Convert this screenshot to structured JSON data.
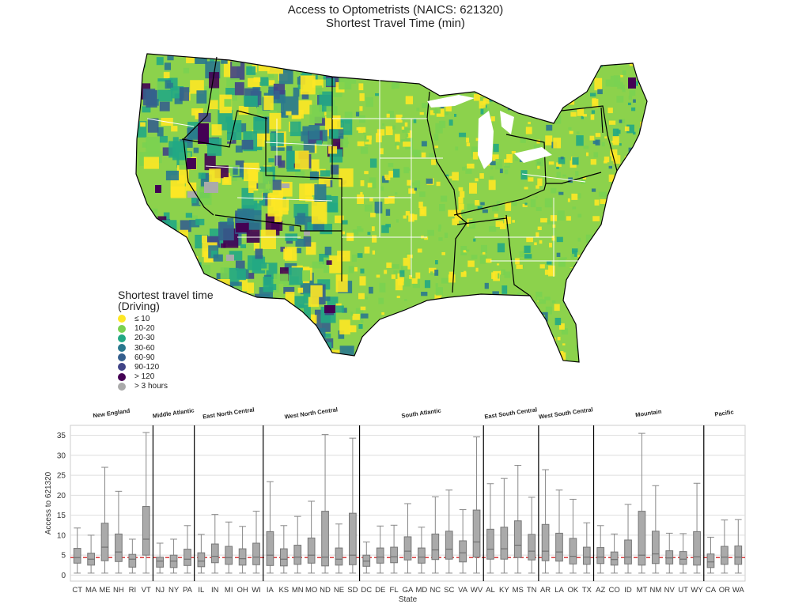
{
  "figure": {
    "title_line1": "Access to Optometrists (NAICS: 621320)",
    "title_line2": "Shortest Travel Time (min)"
  },
  "legend": {
    "title_line1": "Shortest travel time",
    "title_line2": "(Driving)",
    "items": [
      {
        "label": "≤ 10",
        "color": "#fde725"
      },
      {
        "label": "10-20",
        "color": "#7ad151"
      },
      {
        "label": "20-30",
        "color": "#22a884"
      },
      {
        "label": "30-60",
        "color": "#2a788e"
      },
      {
        "label": "60-90",
        "color": "#355f8d"
      },
      {
        "label": "90-120",
        "color": "#414487"
      },
      {
        "label": "> 120",
        "color": "#440154"
      },
      {
        "label": "> 3 hours",
        "color": "#aaaaaa"
      }
    ]
  },
  "chart_data": [
    {
      "type": "map",
      "description_note": "choropleth of shortest travel time by tract across the contiguous US, with census division boundaries",
      "color_scale": [
        "≤ 10",
        "10-20",
        "20-30",
        "30-60",
        "60-90",
        "90-120",
        "> 120",
        "> 3 hours"
      ]
    },
    {
      "type": "box",
      "xlabel": "State",
      "ylabel": "Access to 621320",
      "ylim": [
        -1.5,
        37.5
      ],
      "yticks": [
        0,
        5,
        10,
        15,
        20,
        25,
        30,
        35
      ],
      "grid": true,
      "reference_line": {
        "value": 4.4,
        "color": "#d62728",
        "style": "dashed"
      },
      "box_color": "#aaaaaa",
      "groups": [
        {
          "name": "New England",
          "states": [
            {
              "state": "CT",
              "min": 0.5,
              "q1": 3.0,
              "median": 4.4,
              "q3": 6.7,
              "max": 11.8
            },
            {
              "state": "MA",
              "min": 0.5,
              "q1": 2.5,
              "median": 4.0,
              "q3": 5.5,
              "max": 10.0
            },
            {
              "state": "ME",
              "min": 0.5,
              "q1": 3.6,
              "median": 7.0,
              "q3": 13.0,
              "max": 27.0
            },
            {
              "state": "NH",
              "min": 0.5,
              "q1": 3.4,
              "median": 5.8,
              "q3": 10.3,
              "max": 21.0
            },
            {
              "state": "RI",
              "min": 0.5,
              "q1": 2.0,
              "median": 4.0,
              "q3": 5.2,
              "max": 9.0
            },
            {
              "state": "VT",
              "min": 0.5,
              "q1": 5.0,
              "median": 9.0,
              "q3": 17.2,
              "max": 35.7
            }
          ]
        },
        {
          "name": "Middle Atlantic",
          "states": [
            {
              "state": "NJ",
              "min": 0.5,
              "q1": 2.0,
              "median": 3.5,
              "q3": 4.5,
              "max": 8.0
            },
            {
              "state": "NY",
              "min": 0.5,
              "q1": 1.9,
              "median": 3.5,
              "q3": 5.0,
              "max": 9.0
            },
            {
              "state": "PA",
              "min": 0.5,
              "q1": 2.4,
              "median": 4.0,
              "q3": 6.5,
              "max": 12.4
            }
          ]
        },
        {
          "name": "East North Central",
          "states": [
            {
              "state": "IL",
              "min": 0.5,
              "q1": 2.1,
              "median": 3.5,
              "q3": 5.6,
              "max": 10.2
            },
            {
              "state": "IN",
              "min": 0.5,
              "q1": 3.1,
              "median": 4.7,
              "q3": 7.8,
              "max": 15.2
            },
            {
              "state": "MI",
              "min": 0.5,
              "q1": 2.7,
              "median": 4.4,
              "q3": 7.2,
              "max": 13.3
            },
            {
              "state": "OH",
              "min": 0.5,
              "q1": 2.5,
              "median": 4.1,
              "q3": 6.6,
              "max": 12.2
            },
            {
              "state": "WI",
              "min": 0.5,
              "q1": 2.6,
              "median": 4.5,
              "q3": 8.0,
              "max": 16.0
            }
          ]
        },
        {
          "name": "West North Central",
          "states": [
            {
              "state": "IA",
              "min": 0.5,
              "q1": 2.4,
              "median": 5.0,
              "q3": 10.9,
              "max": 23.4
            },
            {
              "state": "KS",
              "min": 0.5,
              "q1": 2.3,
              "median": 4.0,
              "q3": 6.6,
              "max": 12.4
            },
            {
              "state": "MN",
              "min": 0.5,
              "q1": 2.7,
              "median": 4.5,
              "q3": 7.5,
              "max": 14.7
            },
            {
              "state": "MO",
              "min": 0.5,
              "q1": 3.0,
              "median": 5.0,
              "q3": 9.3,
              "max": 18.5
            },
            {
              "state": "ND",
              "min": 0.5,
              "q1": 2.3,
              "median": 4.5,
              "q3": 16.0,
              "max": 35.2
            },
            {
              "state": "NE",
              "min": 0.5,
              "q1": 2.5,
              "median": 4.0,
              "q3": 6.8,
              "max": 12.8
            },
            {
              "state": "SD",
              "min": 0.5,
              "q1": 2.6,
              "median": 5.0,
              "q3": 15.5,
              "max": 34.3
            }
          ]
        },
        {
          "name": "South Atlantic",
          "states": [
            {
              "state": "DC",
              "min": 0.5,
              "q1": 2.2,
              "median": 3.5,
              "q3": 5.0,
              "max": 8.3
            },
            {
              "state": "DE",
              "min": 0.5,
              "q1": 3.0,
              "median": 4.5,
              "q3": 6.8,
              "max": 12.3
            },
            {
              "state": "FL",
              "min": 0.5,
              "q1": 3.1,
              "median": 4.6,
              "q3": 7.0,
              "max": 12.5
            },
            {
              "state": "GA",
              "min": 0.5,
              "q1": 3.8,
              "median": 6.0,
              "q3": 9.6,
              "max": 17.9
            },
            {
              "state": "MD",
              "min": 0.5,
              "q1": 3.0,
              "median": 4.5,
              "q3": 6.8,
              "max": 12.0
            },
            {
              "state": "NC",
              "min": 0.5,
              "q1": 3.9,
              "median": 6.3,
              "q3": 10.3,
              "max": 19.6
            },
            {
              "state": "SC",
              "min": 0.5,
              "q1": 4.0,
              "median": 6.5,
              "q3": 11.0,
              "max": 21.3
            },
            {
              "state": "VA",
              "min": 0.5,
              "q1": 3.3,
              "median": 5.6,
              "q3": 8.6,
              "max": 16.4
            },
            {
              "state": "WV",
              "min": 0.5,
              "q1": 4.5,
              "median": 8.3,
              "q3": 16.3,
              "max": 34.6
            }
          ]
        },
        {
          "name": "East South Central",
          "states": [
            {
              "state": "AL",
              "min": 0.5,
              "q1": 4.0,
              "median": 6.5,
              "q3": 11.5,
              "max": 22.9
            },
            {
              "state": "KY",
              "min": 0.5,
              "q1": 4.0,
              "median": 6.6,
              "q3": 12.0,
              "max": 24.2
            },
            {
              "state": "MS",
              "min": 0.5,
              "q1": 4.4,
              "median": 7.5,
              "q3": 13.6,
              "max": 27.5
            },
            {
              "state": "TN",
              "min": 0.5,
              "q1": 3.8,
              "median": 6.0,
              "q3": 10.2,
              "max": 19.5
            }
          ]
        },
        {
          "name": "West South Central",
          "states": [
            {
              "state": "AR",
              "min": 0.5,
              "q1": 3.6,
              "median": 6.0,
              "q3": 12.7,
              "max": 26.4
            },
            {
              "state": "LA",
              "min": 0.5,
              "q1": 3.5,
              "median": 5.8,
              "q3": 10.5,
              "max": 21.3
            },
            {
              "state": "OK",
              "min": 0.5,
              "q1": 2.8,
              "median": 4.7,
              "q3": 9.2,
              "max": 19.0
            },
            {
              "state": "TX",
              "min": 0.5,
              "q1": 2.7,
              "median": 4.5,
              "q3": 7.0,
              "max": 13.1
            }
          ]
        },
        {
          "name": "Mountain",
          "states": [
            {
              "state": "AZ",
              "min": 0.5,
              "q1": 2.9,
              "median": 4.5,
              "q3": 6.9,
              "max": 12.4
            },
            {
              "state": "CO",
              "min": 0.5,
              "q1": 2.5,
              "median": 3.9,
              "q3": 5.8,
              "max": 10.3
            },
            {
              "state": "ID",
              "min": 0.5,
              "q1": 2.8,
              "median": 4.5,
              "q3": 8.8,
              "max": 17.7
            },
            {
              "state": "MT",
              "min": 0.5,
              "q1": 2.5,
              "median": 5.0,
              "q3": 16.0,
              "max": 35.5
            },
            {
              "state": "NM",
              "min": 0.5,
              "q1": 2.9,
              "median": 5.3,
              "q3": 11.0,
              "max": 22.4
            },
            {
              "state": "NV",
              "min": 0.5,
              "q1": 2.8,
              "median": 4.3,
              "q3": 6.1,
              "max": 10.5
            },
            {
              "state": "UT",
              "min": 0.5,
              "q1": 2.7,
              "median": 4.0,
              "q3": 5.9,
              "max": 10.4
            },
            {
              "state": "WY",
              "min": 0.5,
              "q1": 2.5,
              "median": 4.6,
              "q3": 10.9,
              "max": 23.0
            }
          ]
        },
        {
          "name": "Pacific",
          "states": [
            {
              "state": "CA",
              "min": 0.5,
              "q1": 1.9,
              "median": 3.3,
              "q3": 5.3,
              "max": 9.5
            },
            {
              "state": "OR",
              "min": 0.5,
              "q1": 2.7,
              "median": 4.5,
              "q3": 7.2,
              "max": 13.8
            },
            {
              "state": "WA",
              "min": 0.5,
              "q1": 2.7,
              "median": 4.5,
              "q3": 7.3,
              "max": 13.9
            }
          ]
        }
      ]
    }
  ]
}
